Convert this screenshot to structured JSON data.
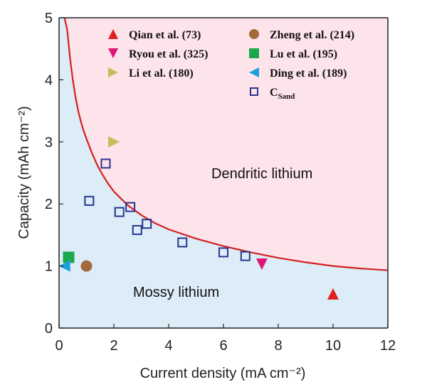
{
  "chart_data": {
    "type": "scatter",
    "xlabel": "Current density  (mA cm⁻²)",
    "ylabel": "Capacity  (mAh cm⁻²)",
    "xlim": [
      0,
      12
    ],
    "ylim": [
      0,
      5
    ],
    "x_ticks": [
      0,
      2,
      4,
      6,
      8,
      10,
      12
    ],
    "y_ticks": [
      0,
      1,
      2,
      3,
      4,
      5
    ],
    "legend_placement": "top",
    "regions": {
      "upper_label": "Dendritic lithium",
      "lower_label": "Mossy lithium",
      "upper_color": "#fde3ea",
      "lower_color": "#dcedf8"
    },
    "curve": {
      "color": "#d42020",
      "points": [
        [
          0.2,
          5.0
        ],
        [
          0.3,
          4.8
        ],
        [
          0.4,
          4.35
        ],
        [
          0.5,
          4.0
        ],
        [
          0.6,
          3.72
        ],
        [
          0.7,
          3.5
        ],
        [
          0.8,
          3.32
        ],
        [
          0.9,
          3.17
        ],
        [
          1.0,
          3.05
        ],
        [
          1.2,
          2.82
        ],
        [
          1.4,
          2.62
        ],
        [
          1.6,
          2.46
        ],
        [
          1.8,
          2.32
        ],
        [
          2.0,
          2.2
        ],
        [
          2.5,
          1.98
        ],
        [
          3.0,
          1.82
        ],
        [
          3.5,
          1.69
        ],
        [
          4.0,
          1.59
        ],
        [
          5.0,
          1.44
        ],
        [
          6.0,
          1.32
        ],
        [
          7.0,
          1.22
        ],
        [
          8.0,
          1.13
        ],
        [
          9.0,
          1.06
        ],
        [
          10.0,
          1.0
        ],
        [
          11.0,
          0.96
        ],
        [
          12.0,
          0.93
        ]
      ]
    },
    "series": [
      {
        "name": "Qian et al. (73)",
        "marker": "triangle-up",
        "color": "#e02020",
        "points": [
          [
            10.0,
            0.55
          ]
        ]
      },
      {
        "name": "Ryou et al. (325)",
        "marker": "triangle-down",
        "color": "#e0157a",
        "points": [
          [
            7.4,
            1.03
          ]
        ]
      },
      {
        "name": "Li et al. (180)",
        "marker": "triangle-right",
        "color": "#c8bb5a",
        "points": [
          [
            2.0,
            3.0
          ]
        ]
      },
      {
        "name": "Zheng et al. (214)",
        "marker": "circle",
        "color": "#a46a3c",
        "points": [
          [
            1.0,
            1.0
          ]
        ]
      },
      {
        "name": "Lu et al. (195)",
        "marker": "square-filled",
        "color": "#1aa84a",
        "points": [
          [
            0.35,
            1.14
          ]
        ]
      },
      {
        "name": "Ding et al. (189)",
        "marker": "triangle-left",
        "color": "#1aa0e0",
        "points": [
          [
            0.2,
            1.0
          ]
        ]
      },
      {
        "name": "C",
        "name_subscript": "Sand",
        "marker": "square-open",
        "color": "#2a3490",
        "points": [
          [
            1.7,
            2.65
          ],
          [
            1.1,
            2.05
          ],
          [
            2.2,
            1.87
          ],
          [
            2.6,
            1.95
          ],
          [
            2.85,
            1.58
          ],
          [
            3.2,
            1.68
          ],
          [
            4.5,
            1.38
          ],
          [
            6.0,
            1.22
          ],
          [
            6.8,
            1.16
          ]
        ]
      }
    ]
  }
}
